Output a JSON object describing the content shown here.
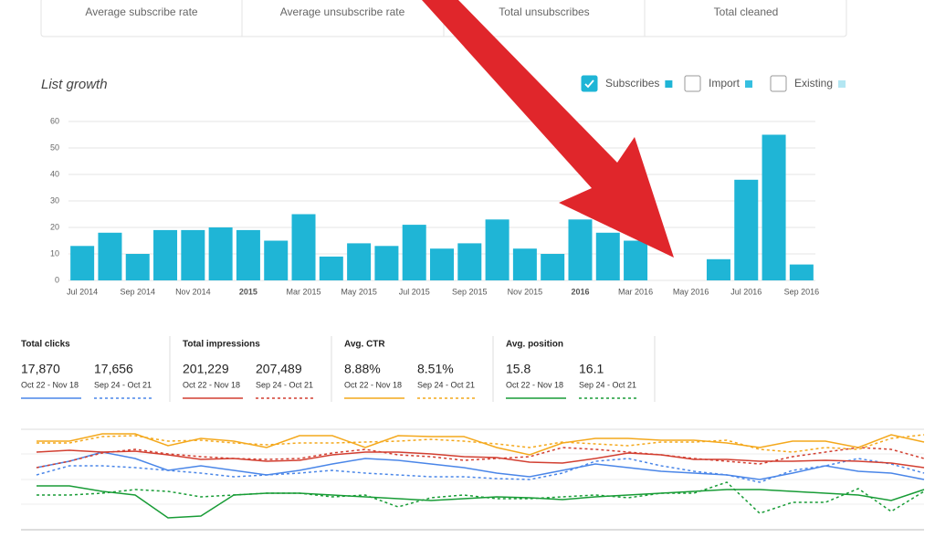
{
  "stats": {
    "labels": [
      "Average subscribe rate",
      "Average unsubscribe rate",
      "Total unsubscribes",
      "Total cleaned"
    ]
  },
  "chart_data": [
    {
      "type": "bar",
      "title": "List growth",
      "legend": [
        {
          "name": "Subscribes",
          "color": "#1fb5d6",
          "checked": true
        },
        {
          "name": "Import",
          "color": "#36bfe0",
          "checked": false
        },
        {
          "name": "Existing",
          "color": "#b3e6f2",
          "checked": false
        }
      ],
      "categories": [
        "Jul 2014",
        null,
        "Sep 2014",
        null,
        "Nov 2014",
        null,
        "2015",
        null,
        "Mar 2015",
        null,
        "May 2015",
        null,
        "Jul 2015",
        null,
        "Sep 2015",
        null,
        "Nov 2015",
        null,
        "2016",
        null,
        "Mar 2016",
        null,
        "May 2016",
        null,
        "Jul 2016",
        null,
        "Sep 2016"
      ],
      "values": [
        13,
        18,
        10,
        19,
        19,
        20,
        19,
        15,
        25,
        9,
        14,
        13,
        21,
        12,
        14,
        23,
        12,
        10,
        23,
        18,
        15,
        0,
        0,
        8,
        38,
        55,
        6
      ],
      "color": "#1fb5d6",
      "ylim": [
        0,
        60
      ],
      "yticks": [
        0,
        10,
        20,
        30,
        40,
        50,
        60
      ],
      "grid": true
    },
    {
      "type": "line",
      "ylim": [
        0,
        110
      ],
      "series": [
        {
          "color": "#4a86e8",
          "dashed": false,
          "values": [
            68,
            75,
            85,
            78,
            65,
            70,
            65,
            60,
            65,
            72,
            78,
            76,
            72,
            68,
            62,
            58,
            65,
            72,
            68,
            64,
            62,
            60,
            55,
            62,
            70,
            64,
            62,
            55
          ]
        },
        {
          "color": "#4a86e8",
          "dashed": true,
          "values": [
            60,
            70,
            70,
            68,
            65,
            62,
            58,
            60,
            62,
            65,
            62,
            60,
            58,
            58,
            56,
            55,
            62,
            75,
            78,
            70,
            64,
            60,
            52,
            65,
            70,
            78,
            72,
            62
          ]
        },
        {
          "color": "#d23f31",
          "dashed": false,
          "values": [
            85,
            87,
            85,
            86,
            82,
            77,
            78,
            75,
            76,
            82,
            85,
            85,
            83,
            80,
            79,
            74,
            73,
            78,
            84,
            82,
            77,
            77,
            75,
            75,
            76,
            75,
            73,
            68
          ]
        },
        {
          "color": "#d23f31",
          "dashed": true,
          "values": [
            68,
            75,
            84,
            88,
            83,
            80,
            78,
            77,
            78,
            84,
            88,
            82,
            80,
            76,
            78,
            80,
            90,
            88,
            85,
            82,
            78,
            75,
            72,
            80,
            85,
            90,
            88,
            78
          ]
        },
        {
          "color": "#f4a81c",
          "dashed": false,
          "values": [
            97,
            97,
            105,
            105,
            92,
            100,
            97,
            90,
            103,
            103,
            90,
            103,
            102,
            102,
            90,
            82,
            95,
            100,
            100,
            98,
            98,
            95,
            90,
            97,
            97,
            90,
            104,
            96
          ]
        },
        {
          "color": "#f4a81c",
          "dashed": true,
          "values": [
            95,
            95,
            102,
            103,
            97,
            98,
            95,
            93,
            95,
            95,
            96,
            97,
            99,
            97,
            94,
            90,
            96,
            94,
            92,
            96,
            96,
            98,
            88,
            85,
            90,
            88,
            100,
            104
          ]
        },
        {
          "color": "#189c36",
          "dashed": false,
          "values": [
            48,
            48,
            42,
            38,
            13,
            15,
            38,
            40,
            40,
            38,
            36,
            34,
            32,
            34,
            36,
            35,
            33,
            36,
            38,
            40,
            42,
            44,
            44,
            42,
            40,
            38,
            32,
            44
          ]
        },
        {
          "color": "#189c36",
          "dashed": true,
          "values": [
            38,
            38,
            40,
            44,
            42,
            36,
            38,
            40,
            40,
            36,
            38,
            25,
            35,
            38,
            34,
            34,
            36,
            38,
            35,
            40,
            40,
            52,
            18,
            30,
            30,
            45,
            20,
            42
          ]
        }
      ]
    }
  ],
  "metrics": [
    {
      "title": "Total clicks",
      "entries": [
        {
          "value": "17,870",
          "range": "Oct 22 - Nov 18"
        },
        {
          "value": "17,656",
          "range": "Sep 24 - Oct 21"
        }
      ]
    },
    {
      "title": "Total impressions",
      "entries": [
        {
          "value": "201,229",
          "range": "Oct 22 - Nov 18"
        },
        {
          "value": "207,489",
          "range": "Sep 24 - Oct 21"
        }
      ]
    },
    {
      "title": "Avg. CTR",
      "entries": [
        {
          "value": "8.88%",
          "range": "Oct 22 - Nov 18"
        },
        {
          "value": "8.51%",
          "range": "Sep 24 - Oct 21"
        }
      ]
    },
    {
      "title": "Avg. position",
      "entries": [
        {
          "value": "15.8",
          "range": "Oct 22 - Nov 18"
        },
        {
          "value": "16.1",
          "range": "Sep 24 - Oct 21"
        }
      ]
    }
  ]
}
